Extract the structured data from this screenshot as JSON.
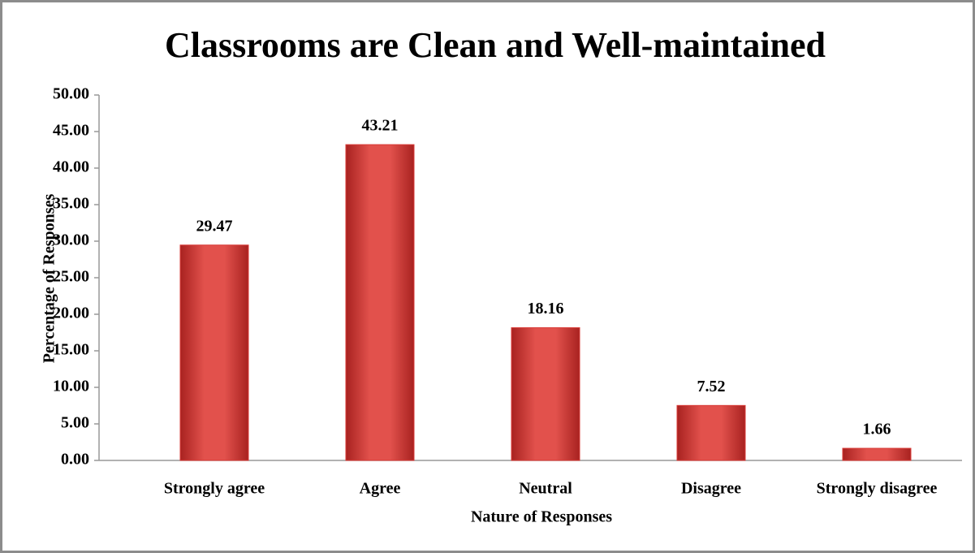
{
  "chart_data": {
    "type": "bar",
    "title": "Classrooms are Clean and Well-maintained",
    "x_label": "Nature of Responses",
    "y_label": "Percentage of Responses",
    "categories": [
      "Strongly agree",
      "Agree",
      "Neutral",
      "Disagree",
      "Strongly disagree"
    ],
    "values": [
      29.47,
      43.21,
      18.16,
      7.52,
      1.66
    ],
    "color": "#d83a36",
    "ylim": [
      0,
      50
    ],
    "yticks": [
      {
        "value": 0,
        "label": "0.00"
      },
      {
        "value": 5,
        "label": "5.00"
      },
      {
        "value": 10,
        "label": "10.00"
      },
      {
        "value": 15,
        "label": "15.00"
      },
      {
        "value": 20,
        "label": "20.00"
      },
      {
        "value": 25,
        "label": "25.00"
      },
      {
        "value": 30,
        "label": "30.00"
      },
      {
        "value": 35,
        "label": "35.00"
      },
      {
        "value": 40,
        "label": "40.00"
      },
      {
        "value": 45,
        "label": "45.00"
      },
      {
        "value": 50,
        "label": "50.00"
      }
    ],
    "grid": false
  }
}
